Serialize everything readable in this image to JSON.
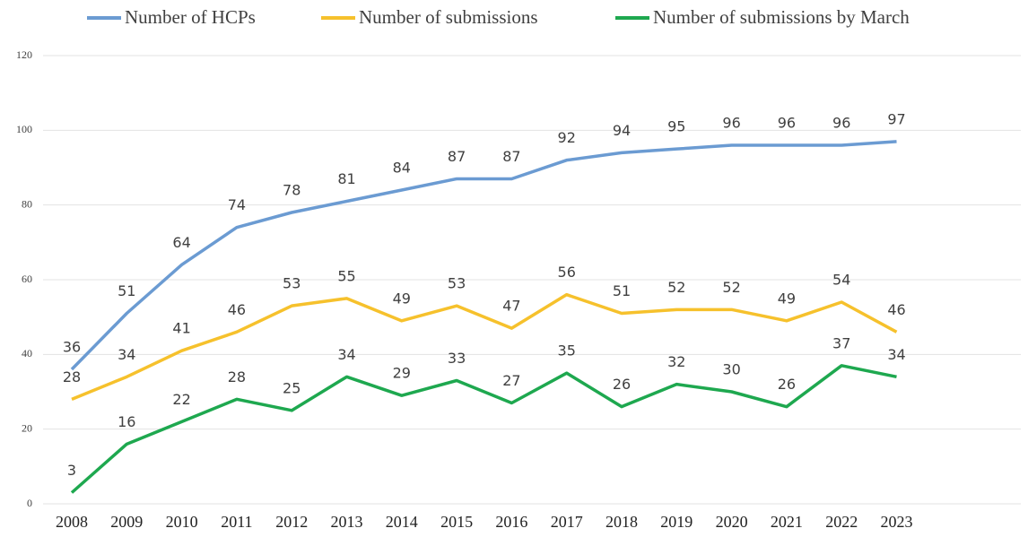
{
  "chart_data": {
    "type": "line",
    "categories": [
      "2008",
      "2009",
      "2010",
      "2011",
      "2012",
      "2013",
      "2014",
      "2015",
      "2016",
      "2017",
      "2018",
      "2019",
      "2020",
      "2021",
      "2022",
      "2023"
    ],
    "series": [
      {
        "name": "Number of HCPs",
        "color": "#6b9bd2",
        "values": [
          36,
          51,
          64,
          74,
          78,
          81,
          84,
          87,
          87,
          92,
          94,
          95,
          96,
          96,
          96,
          97
        ]
      },
      {
        "name": "Number of submissions",
        "color": "#f6c12c",
        "values": [
          28,
          34,
          41,
          46,
          53,
          55,
          49,
          53,
          47,
          56,
          51,
          52,
          52,
          49,
          54,
          46
        ]
      },
      {
        "name": "Number of submissions by March",
        "color": "#1ea84f",
        "values": [
          3,
          16,
          22,
          28,
          25,
          34,
          29,
          33,
          27,
          35,
          26,
          32,
          30,
          26,
          37,
          34
        ]
      }
    ],
    "ylim": [
      0,
      120
    ],
    "yticks": [
      0,
      20,
      40,
      60,
      80,
      100,
      120
    ],
    "grid": true,
    "legend": "top"
  }
}
